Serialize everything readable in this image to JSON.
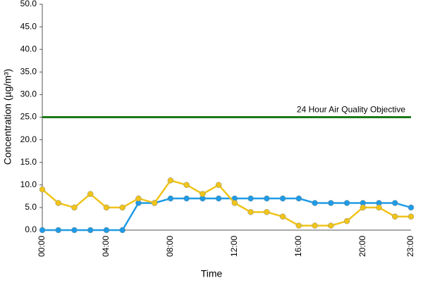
{
  "chart_data": {
    "type": "line",
    "x_label": "Time",
    "y_label": "Concentration (µg/m³)",
    "categories": [
      "00:00",
      null,
      null,
      null,
      "04:00",
      null,
      null,
      null,
      "08:00",
      null,
      null,
      null,
      "12:00",
      null,
      null,
      null,
      "16:00",
      null,
      null,
      null,
      "20:00",
      null,
      null,
      "23:00"
    ],
    "series": [
      {
        "color": "#1e9be6",
        "values": [
          0,
          0,
          0,
          0,
          0,
          0,
          6,
          6,
          7,
          7,
          7,
          7,
          7,
          7,
          7,
          7,
          7,
          6,
          6,
          6,
          6,
          6,
          6,
          5
        ]
      },
      {
        "color": "#f0c419",
        "values": [
          9,
          6,
          5,
          8,
          5,
          5,
          7,
          6,
          11,
          10,
          8,
          10,
          6,
          4,
          4,
          3,
          1,
          1,
          1,
          2,
          5,
          5,
          3,
          3
        ]
      }
    ],
    "reference_line": {
      "value": 25,
      "label": "24 Hour Air Quality Objective",
      "color": "#1a7a1a"
    },
    "ylim": [
      0,
      50
    ],
    "yticks": [
      {
        "value": 0,
        "label": "0.0"
      },
      {
        "value": 5,
        "label": "5.0"
      },
      {
        "value": 10,
        "label": "10.0"
      },
      {
        "value": 15,
        "label": "15.0"
      },
      {
        "value": 20,
        "label": "20.0"
      },
      {
        "value": 25,
        "label": "25.0"
      },
      {
        "value": 30,
        "label": "30.0"
      },
      {
        "value": 35,
        "label": "35.0"
      },
      {
        "value": 40,
        "label": "40.0"
      },
      {
        "value": 45,
        "label": "45.0"
      },
      {
        "value": 50,
        "label": "50.0"
      }
    ]
  }
}
